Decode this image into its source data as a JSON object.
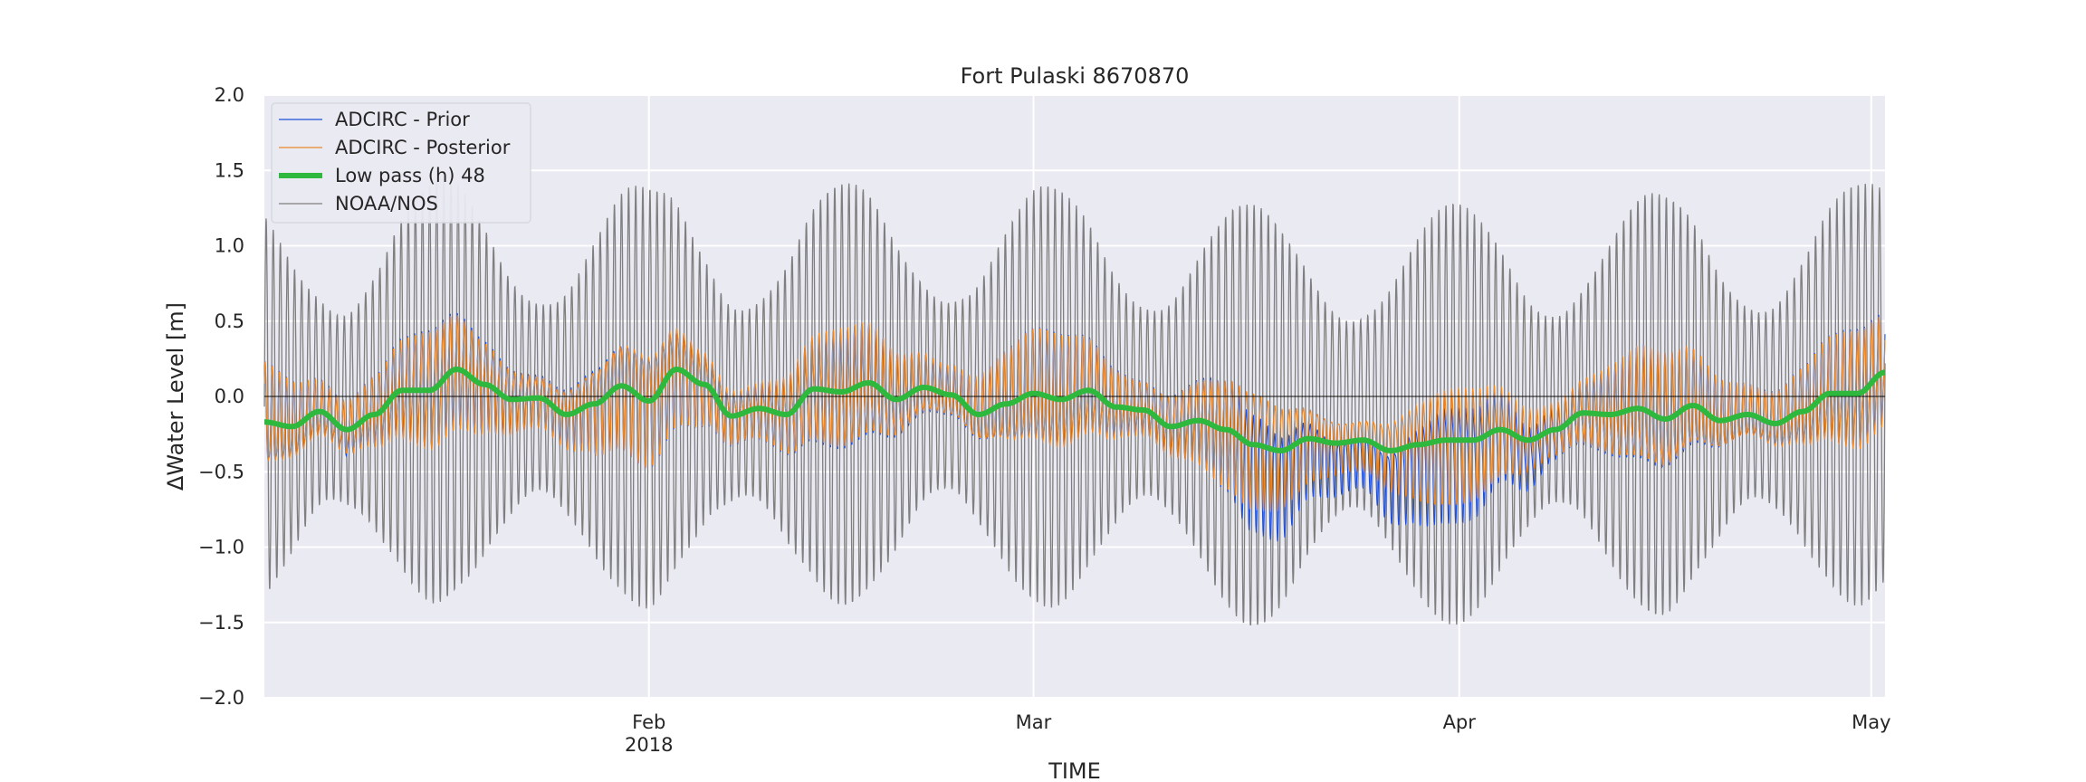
{
  "chart_data": {
    "type": "line",
    "title": "Fort Pulaski  8670870",
    "xlabel": "TIME",
    "ylabel": "ΔWater Level [m]",
    "ylim": [
      -2.0,
      2.0
    ],
    "yticks": [
      "2.0",
      "1.5",
      "1.0",
      "0.5",
      "0.0",
      "−0.5",
      "−1.0",
      "−1.5",
      "−2.0"
    ],
    "xlim": [
      "2018-01-04",
      "2018-05-02"
    ],
    "xticks": [
      {
        "date": "2018-02-01",
        "label": "Feb",
        "sublabel": "2018"
      },
      {
        "date": "2018-03-01",
        "label": "Mar",
        "sublabel": ""
      },
      {
        "date": "2018-04-01",
        "label": "Apr",
        "sublabel": ""
      },
      {
        "date": "2018-05-01",
        "label": "May",
        "sublabel": ""
      }
    ],
    "grid": true,
    "legend_position": "top-left",
    "zero_line": true,
    "series": [
      {
        "name": "ADCIRC - Prior",
        "color": "#1f4fd8",
        "style": "thin line",
        "semidiurnal_amplitude_m": 0.45,
        "note_offset_vs_lowpass": "follows low-pass with tidal oscillation, dips to about -0.85 in early March"
      },
      {
        "name": "ADCIRC - Posterior",
        "color": "#e8862a",
        "style": "thin line",
        "semidiurnal_amplitude_m": 0.45
      },
      {
        "name": "Low pass (h) 48",
        "color": "#2eb83d",
        "style": "thick line",
        "x": [
          "2018-01-04",
          "2018-01-06",
          "2018-01-08",
          "2018-01-10",
          "2018-01-12",
          "2018-01-14",
          "2018-01-16",
          "2018-01-18",
          "2018-01-20",
          "2018-01-22",
          "2018-01-24",
          "2018-01-26",
          "2018-01-28",
          "2018-01-30",
          "2018-02-01",
          "2018-02-03",
          "2018-02-05",
          "2018-02-07",
          "2018-02-09",
          "2018-02-11",
          "2018-02-13",
          "2018-02-15",
          "2018-02-17",
          "2018-02-19",
          "2018-02-21",
          "2018-02-23",
          "2018-02-25",
          "2018-02-27",
          "2018-03-01",
          "2018-03-03",
          "2018-03-05",
          "2018-03-07",
          "2018-03-09",
          "2018-03-11",
          "2018-03-13",
          "2018-03-15",
          "2018-03-17",
          "2018-03-19",
          "2018-03-21",
          "2018-03-23",
          "2018-03-25",
          "2018-03-27",
          "2018-03-29",
          "2018-03-31",
          "2018-04-02",
          "2018-04-04",
          "2018-04-06",
          "2018-04-08",
          "2018-04-10",
          "2018-04-12",
          "2018-04-14",
          "2018-04-16",
          "2018-04-18",
          "2018-04-20",
          "2018-04-22",
          "2018-04-24",
          "2018-04-26",
          "2018-04-28",
          "2018-04-30",
          "2018-05-02"
        ],
        "y": [
          -0.17,
          -0.2,
          -0.1,
          -0.22,
          -0.12,
          0.04,
          0.04,
          0.18,
          0.08,
          -0.02,
          -0.01,
          -0.12,
          -0.05,
          0.07,
          -0.03,
          0.18,
          0.08,
          -0.13,
          -0.08,
          -0.12,
          0.05,
          0.03,
          0.09,
          -0.02,
          0.06,
          0.01,
          -0.12,
          -0.05,
          0.02,
          -0.02,
          0.04,
          -0.07,
          -0.09,
          -0.2,
          -0.16,
          -0.22,
          -0.32,
          -0.36,
          -0.28,
          -0.31,
          -0.29,
          -0.36,
          -0.32,
          -0.29,
          -0.29,
          -0.22,
          -0.29,
          -0.22,
          -0.11,
          -0.12,
          -0.08,
          -0.15,
          -0.06,
          -0.16,
          -0.12,
          -0.18,
          -0.1,
          0.02,
          0.02,
          0.16
        ]
      },
      {
        "name": "NOAA/NOS",
        "color": "#7f7f7f",
        "style": "thin line",
        "semidiurnal_amplitude_m": 1.4,
        "peak_range_m": [
          -1.73,
          1.65
        ]
      }
    ]
  }
}
